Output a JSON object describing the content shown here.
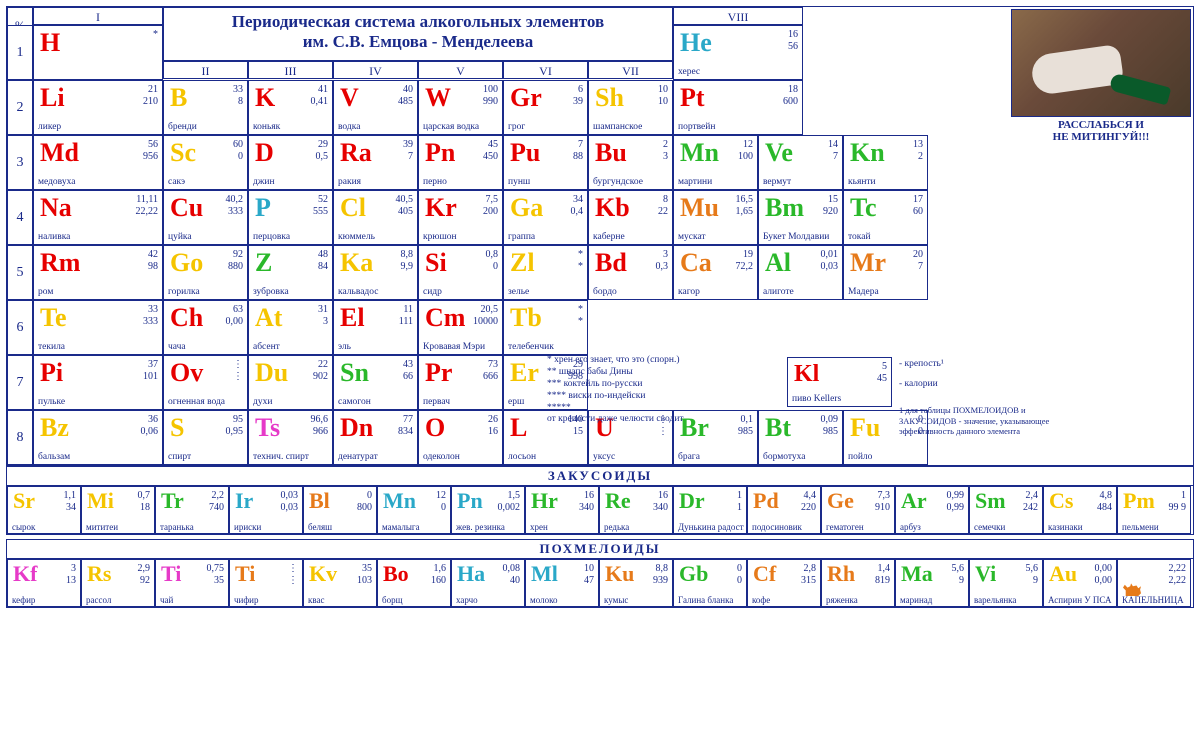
{
  "title_line1": "Периодическая система алкогольных элементов",
  "title_line2": "им. С.В. Емцова - Менделеева",
  "percent_label": "%",
  "groups": [
    "I",
    "II",
    "III",
    "IV",
    "V",
    "VI",
    "VII",
    "VIII"
  ],
  "periods": [
    "1",
    "2",
    "3",
    "4",
    "5",
    "6",
    "7",
    "8"
  ],
  "photo_caption": "РАССЛАБЬСЯ И\nНЕ МИТИНГУЙ!!!",
  "colors": {
    "red": "#e60000",
    "yellow": "#f5c400",
    "cyan": "#2aa8c8",
    "green": "#2ab82a",
    "orange": "#e67a1a",
    "magenta": "#e63ac8",
    "blue": "#1a2a8a"
  },
  "legend": {
    "sym": "Kl",
    "n1": "5",
    "n2": "45",
    "name": "пиво Kellers",
    "t1": "- крепость¹",
    "t2": "- калории",
    "foot": "1 для таблицы ПОХМЕЛОИДОВ и ЗАКУСОИДОВ - значение, указывающее эффективность данного элемента"
  },
  "side_notes": [
    "*        хрен его знает, что это (спорн.)",
    "**      шнапс бабы Дины",
    "***    коктейль по-русски",
    "****  виски по-индейски",
    "*****",
    "от крепости даже челюсти сводит"
  ],
  "dots3": "⋮",
  "main": [
    [
      {
        "sym": "H",
        "c": "red",
        "n1": "*",
        "n2": "",
        "name": ""
      },
      null,
      null,
      null,
      null,
      null,
      null,
      {
        "sym": "He",
        "c": "cyan",
        "n1": "16",
        "n2": "56",
        "name": "херес"
      }
    ],
    [
      {
        "sym": "Li",
        "c": "red",
        "n1": "21",
        "n2": "210",
        "name": "ликер"
      },
      {
        "sym": "B",
        "c": "yellow",
        "n1": "33",
        "n2": "8",
        "name": "бренди"
      },
      {
        "sym": "K",
        "c": "red",
        "n1": "41",
        "n2": "0,41",
        "name": "коньяк"
      },
      {
        "sym": "V",
        "c": "red",
        "n1": "40",
        "n2": "485",
        "name": "водка"
      },
      {
        "sym": "W",
        "c": "red",
        "n1": "100",
        "n2": "990",
        "name": "царская водка"
      },
      {
        "sym": "Gr",
        "c": "red",
        "n1": "6",
        "n2": "39",
        "name": "грог"
      },
      {
        "sym": "Sh",
        "c": "yellow",
        "n1": "10",
        "n2": "10",
        "name": "шампанское"
      },
      {
        "sym": "Pt",
        "c": "red",
        "n1": "18",
        "n2": "600",
        "name": "портвейн"
      }
    ],
    [
      {
        "sym": "Md",
        "c": "red",
        "n1": "56",
        "n2": "956",
        "name": "медовуха"
      },
      {
        "sym": "Sc",
        "c": "yellow",
        "n1": "60",
        "n2": "0",
        "name": "сакэ"
      },
      {
        "sym": "D",
        "c": "red",
        "n1": "29",
        "n2": "0,5",
        "name": "джин"
      },
      {
        "sym": "Ra",
        "c": "red",
        "n1": "39",
        "n2": "7",
        "name": "ракия"
      },
      {
        "sym": "Pn",
        "c": "red",
        "n1": "45",
        "n2": "450",
        "name": "перно"
      },
      {
        "sym": "Pu",
        "c": "red",
        "n1": "7",
        "n2": "88",
        "name": "пунш"
      },
      {
        "sym": "Bu",
        "c": "red",
        "n1": "2",
        "n2": "3",
        "name": "бургундское"
      },
      {
        "sym": "Mn",
        "c": "green",
        "n1": "12",
        "n2": "100",
        "name": "мартини"
      },
      {
        "sym": "Ve",
        "c": "green",
        "n1": "14",
        "n2": "7",
        "name": "вермут"
      },
      {
        "sym": "Kn",
        "c": "green",
        "n1": "13",
        "n2": "2",
        "name": "кьянти"
      }
    ],
    [
      {
        "sym": "Na",
        "c": "red",
        "n1": "11,11",
        "n2": "22,22",
        "name": "наливка"
      },
      {
        "sym": "Cu",
        "c": "red",
        "n1": "40,2",
        "n2": "333",
        "name": "цуйка"
      },
      {
        "sym": "P",
        "c": "cyan",
        "n1": "52",
        "n2": "555",
        "name": "перцовка"
      },
      {
        "sym": "Cl",
        "c": "yellow",
        "n1": "40,5",
        "n2": "405",
        "name": "кюммель"
      },
      {
        "sym": "Kr",
        "c": "red",
        "n1": "7,5",
        "n2": "200",
        "name": "крюшон"
      },
      {
        "sym": "Ga",
        "c": "yellow",
        "n1": "34",
        "n2": "0,4",
        "name": "граппа"
      },
      {
        "sym": "Kb",
        "c": "red",
        "n1": "8",
        "n2": "22",
        "name": "каберне"
      },
      {
        "sym": "Mu",
        "c": "orange",
        "n1": "16,5",
        "n2": "1,65",
        "name": "мускат"
      },
      {
        "sym": "Bm",
        "c": "green",
        "n1": "15",
        "n2": "920",
        "name": "Букет Молдавии"
      },
      {
        "sym": "Tc",
        "c": "green",
        "n1": "17",
        "n2": "60",
        "name": "токай"
      }
    ],
    [
      {
        "sym": "Rm",
        "c": "red",
        "n1": "42",
        "n2": "98",
        "name": "ром"
      },
      {
        "sym": "Go",
        "c": "yellow",
        "n1": "92",
        "n2": "880",
        "name": "горилка"
      },
      {
        "sym": "Z",
        "c": "green",
        "n1": "48",
        "n2": "84",
        "name": "зубровка"
      },
      {
        "sym": "Ka",
        "c": "yellow",
        "n1": "8,8",
        "n2": "9,9",
        "name": "кальвадос"
      },
      {
        "sym": "Si",
        "c": "red",
        "n1": "0,8",
        "n2": "0",
        "name": "сидр"
      },
      {
        "sym": "Zl",
        "c": "yellow",
        "n1": "*",
        "n2": "*",
        "name": "зелье"
      },
      {
        "sym": "Bd",
        "c": "red",
        "n1": "3",
        "n2": "0,3",
        "name": "бордо"
      },
      {
        "sym": "Ca",
        "c": "orange",
        "n1": "19",
        "n2": "72,2",
        "name": "кагор"
      },
      {
        "sym": "Al",
        "c": "green",
        "n1": "0,01",
        "n2": "0,03",
        "name": "алиготе"
      },
      {
        "sym": "Mr",
        "c": "orange",
        "n1": "20",
        "n2": "7",
        "name": "Мадера"
      }
    ],
    [
      {
        "sym": "Te",
        "c": "yellow",
        "n1": "33",
        "n2": "333",
        "name": "текила"
      },
      {
        "sym": "Ch",
        "c": "red",
        "n1": "63",
        "n2": "0,00",
        "name": "чача"
      },
      {
        "sym": "At",
        "c": "yellow",
        "n1": "31",
        "n2": "3",
        "name": "абсент"
      },
      {
        "sym": "El",
        "c": "red",
        "n1": "11",
        "n2": "111",
        "name": "эль"
      },
      {
        "sym": "Cm",
        "c": "red",
        "n1": "20,5",
        "n2": "10000",
        "name": "Кровавая Мэри"
      },
      {
        "sym": "Tb",
        "c": "yellow",
        "n1": "*",
        "n2": "*",
        "name": "телебенчик"
      }
    ],
    [
      {
        "sym": "Pi",
        "c": "red",
        "n1": "37",
        "n2": "101",
        "name": "пульке"
      },
      {
        "sym": "Ov",
        "c": "red",
        "n1": "⋮",
        "n2": "⋮",
        "name": "огненная вода"
      },
      {
        "sym": "Du",
        "c": "yellow",
        "n1": "22",
        "n2": "902",
        "name": "духи"
      },
      {
        "sym": "Sn",
        "c": "green",
        "n1": "43",
        "n2": "66",
        "name": "самогон"
      },
      {
        "sym": "Pr",
        "c": "red",
        "n1": "73",
        "n2": "666",
        "name": "первач"
      },
      {
        "sym": "Er",
        "c": "yellow",
        "n1": "29",
        "n2": "998",
        "name": "ерш"
      }
    ],
    [
      {
        "sym": "Bz",
        "c": "yellow",
        "n1": "36",
        "n2": "0,06",
        "name": "бальзам"
      },
      {
        "sym": "S",
        "c": "yellow",
        "n1": "95",
        "n2": "0,95",
        "name": "спирт"
      },
      {
        "sym": "Ts",
        "c": "magenta",
        "n1": "96,6",
        "n2": "966",
        "name": "технич. спирт"
      },
      {
        "sym": "Dn",
        "c": "red",
        "n1": "77",
        "n2": "834",
        "name": "денатурат"
      },
      {
        "sym": "O",
        "c": "red",
        "n1": "26",
        "n2": "16",
        "name": "одеколон"
      },
      {
        "sym": "L",
        "c": "red",
        "n1": "140",
        "n2": "15",
        "name": "лосьон"
      },
      {
        "sym": "U",
        "c": "red",
        "n1": "⋮",
        "n2": "⋮",
        "name": "уксус"
      },
      {
        "sym": "Br",
        "c": "green",
        "n1": "0,1",
        "n2": "985",
        "name": "брага"
      },
      {
        "sym": "Bt",
        "c": "green",
        "n1": "0,09",
        "n2": "985",
        "name": "бормотуха"
      },
      {
        "sym": "Fu",
        "c": "yellow",
        "n1": "0",
        "n2": "0",
        "name": "пойло"
      }
    ]
  ],
  "zak_label": "ЗАКУСОИДЫ",
  "zak": [
    {
      "sym": "Sr",
      "c": "yellow",
      "n1": "1,1",
      "n2": "34",
      "name": "сырок"
    },
    {
      "sym": "Mi",
      "c": "yellow",
      "n1": "0,7",
      "n2": "18",
      "name": "мититеи"
    },
    {
      "sym": "Tr",
      "c": "green",
      "n1": "2,2",
      "n2": "740",
      "name": "таранька"
    },
    {
      "sym": "Ir",
      "c": "cyan",
      "n1": "0,03",
      "n2": "0,03",
      "name": "ириски"
    },
    {
      "sym": "Bl",
      "c": "orange",
      "n1": "0",
      "n2": "800",
      "name": "беляш"
    },
    {
      "sym": "Mn",
      "c": "cyan",
      "n1": "12",
      "n2": "0",
      "name": "мамалыга"
    },
    {
      "sym": "Pn",
      "c": "cyan",
      "n1": "1,5",
      "n2": "0,002",
      "name": "жев. резинка"
    },
    {
      "sym": "Hr",
      "c": "green",
      "n1": "16",
      "n2": "340",
      "name": "хрен"
    },
    {
      "sym": "Re",
      "c": "green",
      "n1": "16",
      "n2": "340",
      "name": "редька"
    },
    {
      "sym": "Dr",
      "c": "green",
      "n1": "1",
      "n2": "1",
      "name": "Дунькина радость"
    },
    {
      "sym": "Pd",
      "c": "orange",
      "n1": "4,4",
      "n2": "220",
      "name": "подосиновик"
    },
    {
      "sym": "Ge",
      "c": "orange",
      "n1": "7,3",
      "n2": "910",
      "name": "гематоген"
    },
    {
      "sym": "Ar",
      "c": "green",
      "n1": "0,99",
      "n2": "0,99",
      "name": "арбуз"
    },
    {
      "sym": "Sm",
      "c": "green",
      "n1": "2,4",
      "n2": "242",
      "name": "семечки"
    },
    {
      "sym": "Cs",
      "c": "yellow",
      "n1": "4,8",
      "n2": "484",
      "name": "казинаки"
    },
    {
      "sym": "Pm",
      "c": "yellow",
      "n1": "1",
      "n2": "99 9",
      "name": "пельмени"
    }
  ],
  "poh_label": "ПОХМЕЛОИДЫ",
  "poh": [
    {
      "sym": "Kf",
      "c": "magenta",
      "n1": "3",
      "n2": "13",
      "name": "кефир"
    },
    {
      "sym": "Rs",
      "c": "yellow",
      "n1": "2,9",
      "n2": "92",
      "name": "рассол"
    },
    {
      "sym": "Ti",
      "c": "magenta",
      "n1": "0,75",
      "n2": "35",
      "name": "чай"
    },
    {
      "sym": "Ti",
      "c": "orange",
      "n1": "⋮",
      "n2": "⋮",
      "name": "чифир"
    },
    {
      "sym": "Kv",
      "c": "yellow",
      "n1": "35",
      "n2": "103",
      "name": "квас"
    },
    {
      "sym": "Bo",
      "c": "red",
      "n1": "1,6",
      "n2": "160",
      "name": "борщ"
    },
    {
      "sym": "Ha",
      "c": "cyan",
      "n1": "0,08",
      "n2": "40",
      "name": "харчо"
    },
    {
      "sym": "Ml",
      "c": "cyan",
      "n1": "10",
      "n2": "47",
      "name": "молоко"
    },
    {
      "sym": "Ku",
      "c": "orange",
      "n1": "8,8",
      "n2": "939",
      "name": "кумыс"
    },
    {
      "sym": "Gb",
      "c": "green",
      "n1": "0",
      "n2": "0",
      "name": "Галина бланка"
    },
    {
      "sym": "Cf",
      "c": "orange",
      "n1": "2,8",
      "n2": "315",
      "name": "кофе"
    },
    {
      "sym": "Rh",
      "c": "orange",
      "n1": "1,4",
      "n2": "819",
      "name": "ряженка"
    },
    {
      "sym": "Ma",
      "c": "green",
      "n1": "5,6",
      "n2": "9",
      "name": "маринад"
    },
    {
      "sym": "Vi",
      "c": "green",
      "n1": "5,6",
      "n2": "9",
      "name": "варельянка"
    },
    {
      "sym": "Au",
      "c": "yellow",
      "n1": "0,00",
      "n2": "0,00",
      "name": "Аспирин У ПСА"
    },
    {
      "sym": "Kc",
      "c": "orange",
      "n1": "2,22",
      "n2": "2,22",
      "name": "КАПЕЛЬНИЦА",
      "cat": true
    }
  ]
}
